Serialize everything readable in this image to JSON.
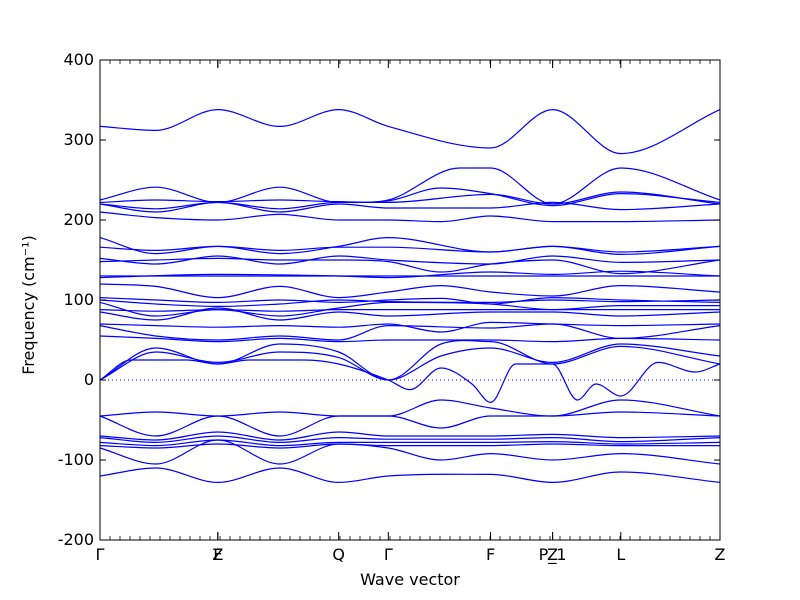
{
  "chart_data": {
    "type": "line",
    "title": "",
    "xlabel": "Wave vector",
    "ylabel": "Frequency (cm⁻¹)",
    "ylim": [
      -200,
      400
    ],
    "yticks": [
      -200,
      -100,
      0,
      100,
      200,
      300,
      400
    ],
    "kpoints": [
      {
        "label": "Γ",
        "x": 0.0
      },
      {
        "label": "F",
        "x": 0.19
      },
      {
        "label": "Z",
        "x": 0.19
      },
      {
        "label": "Q",
        "x": 0.385
      },
      {
        "label": "Γ",
        "x": 0.465
      },
      {
        "label": "F",
        "x": 0.63
      },
      {
        "label": "P_1",
        "x": 0.73
      },
      {
        "label": "Z",
        "x": 0.73
      },
      {
        "label": "L",
        "x": 0.84
      },
      {
        "label": "Z",
        "x": 1.0
      }
    ],
    "zero_line": {
      "y": 0,
      "style": "dotted"
    },
    "line_color": "#0000ff",
    "series": [
      {
        "x": [
          0,
          0.09,
          0.19,
          0.29,
          0.385,
          0.465,
          0.63,
          0.73,
          0.84,
          1.0
        ],
        "y": [
          317,
          312,
          338,
          317,
          338,
          317,
          290,
          338,
          283,
          338
        ]
      },
      {
        "x": [
          0,
          0.09,
          0.19,
          0.29,
          0.385,
          0.465,
          0.55,
          0.63,
          0.73,
          0.84,
          1.0
        ],
        "y": [
          225,
          241,
          222,
          241,
          222,
          224,
          240,
          233,
          218,
          233,
          222
        ]
      },
      {
        "x": [
          0,
          0.09,
          0.19,
          0.29,
          0.385,
          0.465,
          0.58,
          0.63,
          0.73,
          0.84,
          1.0
        ],
        "y": [
          222,
          225,
          223,
          225,
          223,
          225,
          265,
          265,
          220,
          265,
          225
        ]
      },
      {
        "x": [
          0,
          0.09,
          0.19,
          0.29,
          0.385,
          0.465,
          0.63,
          0.73,
          0.84,
          1.0
        ],
        "y": [
          220,
          214,
          222,
          214,
          222,
          222,
          232,
          220,
          235,
          220
        ]
      },
      {
        "x": [
          0,
          0.09,
          0.19,
          0.29,
          0.385,
          0.465,
          0.63,
          0.73,
          0.84,
          1.0
        ],
        "y": [
          220,
          210,
          222,
          210,
          220,
          215,
          215,
          222,
          213,
          220
        ]
      },
      {
        "x": [
          0,
          0.09,
          0.19,
          0.29,
          0.385,
          0.465,
          0.55,
          0.63,
          0.73,
          0.84,
          1.0
        ],
        "y": [
          210,
          203,
          200,
          207,
          200,
          200,
          198,
          205,
          198,
          198,
          200
        ]
      },
      {
        "x": [
          0,
          0.09,
          0.19,
          0.29,
          0.385,
          0.465,
          0.63,
          0.73,
          0.84,
          1.0
        ],
        "y": [
          178,
          158,
          167,
          158,
          167,
          178,
          160,
          167,
          157,
          167
        ]
      },
      {
        "x": [
          0,
          0.09,
          0.19,
          0.29,
          0.385,
          0.465,
          0.63,
          0.73,
          0.84,
          1.0
        ],
        "y": [
          166,
          162,
          167,
          162,
          166,
          166,
          160,
          167,
          160,
          167
        ]
      },
      {
        "x": [
          0,
          0.09,
          0.19,
          0.29,
          0.385,
          0.465,
          0.63,
          0.73,
          0.84,
          1.0
        ],
        "y": [
          152,
          145,
          155,
          145,
          155,
          150,
          145,
          155,
          147,
          150
        ]
      },
      {
        "x": [
          0,
          0.09,
          0.19,
          0.29,
          0.385,
          0.465,
          0.55,
          0.63,
          0.73,
          0.84,
          1.0
        ],
        "y": [
          148,
          150,
          152,
          150,
          150,
          148,
          135,
          145,
          150,
          133,
          150
        ]
      },
      {
        "x": [
          0,
          0.19,
          0.385,
          0.465,
          0.63,
          0.73,
          0.84,
          1.0
        ],
        "y": [
          130,
          130,
          130,
          130,
          130,
          130,
          130,
          130
        ]
      },
      {
        "x": [
          0,
          0.19,
          0.385,
          0.465,
          0.63,
          0.73,
          0.84,
          1.0
        ],
        "y": [
          128,
          132,
          130,
          128,
          135,
          132,
          136,
          130
        ]
      },
      {
        "x": [
          0,
          0.09,
          0.19,
          0.29,
          0.385,
          0.465,
          0.55,
          0.63,
          0.73,
          0.84,
          1.0
        ],
        "y": [
          120,
          117,
          103,
          117,
          103,
          110,
          118,
          110,
          105,
          118,
          110
        ]
      },
      {
        "x": [
          0,
          0.09,
          0.19,
          0.29,
          0.385,
          0.465,
          0.55,
          0.63,
          0.73,
          0.84,
          1.0
        ],
        "y": [
          103,
          100,
          97,
          100,
          97,
          100,
          102,
          95,
          103,
          100,
          97
        ]
      },
      {
        "x": [
          0,
          0.09,
          0.19,
          0.29,
          0.385,
          0.465,
          0.63,
          0.73,
          0.84,
          1.0
        ],
        "y": [
          100,
          95,
          92,
          95,
          100,
          98,
          97,
          100,
          98,
          100
        ]
      },
      {
        "x": [
          0,
          0.09,
          0.19,
          0.29,
          0.385,
          0.465,
          0.63,
          0.73,
          0.84,
          1.0
        ],
        "y": [
          97,
          80,
          88,
          80,
          90,
          97,
          95,
          88,
          93,
          93
        ]
      },
      {
        "x": [
          0,
          0.09,
          0.19,
          0.29,
          0.385,
          0.465,
          0.63,
          0.73,
          0.84,
          1.0
        ],
        "y": [
          88,
          86,
          88,
          86,
          88,
          88,
          88,
          88,
          88,
          88
        ]
      },
      {
        "x": [
          0,
          0.09,
          0.19,
          0.29,
          0.385,
          0.465,
          0.63,
          0.73,
          0.84,
          1.0
        ],
        "y": [
          85,
          75,
          90,
          75,
          85,
          80,
          85,
          85,
          80,
          85
        ]
      },
      {
        "x": [
          0,
          0.09,
          0.19,
          0.29,
          0.385,
          0.465,
          0.55,
          0.63,
          0.73,
          0.84,
          1.0
        ],
        "y": [
          70,
          68,
          66,
          68,
          66,
          70,
          60,
          72,
          70,
          68,
          70
        ]
      },
      {
        "x": [
          0,
          0.09,
          0.19,
          0.29,
          0.385,
          0.465,
          0.63,
          0.73,
          0.84,
          1.0
        ],
        "y": [
          68,
          55,
          50,
          55,
          50,
          68,
          65,
          70,
          52,
          68
        ]
      },
      {
        "x": [
          0,
          0.09,
          0.19,
          0.29,
          0.385,
          0.465,
          0.63,
          0.73,
          0.84,
          1.0
        ],
        "y": [
          55,
          52,
          48,
          52,
          48,
          50,
          50,
          48,
          52,
          50
        ]
      },
      {
        "x": [
          0,
          0.09,
          0.19,
          0.29,
          0.385,
          0.465,
          0.55,
          0.63,
          0.73,
          0.84,
          1.0
        ],
        "y": [
          0,
          40,
          20,
          45,
          35,
          0,
          45,
          48,
          20,
          42,
          20
        ]
      },
      {
        "x": [
          0,
          0.09,
          0.19,
          0.29,
          0.385,
          0.465,
          0.55,
          0.63,
          0.73,
          0.84,
          1.0
        ],
        "y": [
          0,
          35,
          22,
          35,
          28,
          0,
          30,
          40,
          22,
          45,
          30
        ]
      },
      {
        "x": [
          0,
          0.05,
          0.14,
          0.19,
          0.24,
          0.33,
          0.385,
          0.465,
          0.5,
          0.55,
          0.6,
          0.63,
          0.67,
          0.73,
          0.77,
          0.8,
          0.84,
          0.9,
          0.96,
          1.0
        ],
        "y": [
          0,
          25,
          25,
          20,
          25,
          25,
          20,
          0,
          -12,
          15,
          -5,
          -28,
          20,
          20,
          -25,
          -5,
          -20,
          22,
          10,
          20
        ]
      },
      {
        "x": [
          0,
          0.09,
          0.19,
          0.29,
          0.385,
          0.465,
          0.55,
          0.63,
          0.73,
          0.84,
          1.0
        ],
        "y": [
          -45,
          -70,
          -45,
          -70,
          -45,
          -45,
          -25,
          -35,
          -45,
          -40,
          -45
        ]
      },
      {
        "x": [
          0,
          0.09,
          0.19,
          0.29,
          0.385,
          0.465,
          0.55,
          0.63,
          0.73,
          0.84,
          1.0
        ],
        "y": [
          -45,
          -40,
          -45,
          -40,
          -45,
          -45,
          -60,
          -45,
          -45,
          -25,
          -45
        ]
      },
      {
        "x": [
          0,
          0.09,
          0.19,
          0.29,
          0.385,
          0.465,
          0.63,
          0.73,
          0.84,
          1.0
        ],
        "y": [
          -70,
          -75,
          -65,
          -75,
          -65,
          -70,
          -70,
          -68,
          -72,
          -70
        ]
      },
      {
        "x": [
          0,
          0.09,
          0.19,
          0.29,
          0.385,
          0.465,
          0.63,
          0.73,
          0.84,
          1.0
        ],
        "y": [
          -72,
          -78,
          -70,
          -78,
          -72,
          -74,
          -74,
          -72,
          -77,
          -72
        ]
      },
      {
        "x": [
          0,
          0.09,
          0.19,
          0.29,
          0.385,
          0.465,
          0.63,
          0.73,
          0.84,
          1.0
        ],
        "y": [
          -78,
          -82,
          -75,
          -82,
          -78,
          -78,
          -78,
          -77,
          -80,
          -78
        ]
      },
      {
        "x": [
          0,
          0.09,
          0.19,
          0.29,
          0.385,
          0.465,
          0.63,
          0.73,
          0.84,
          1.0
        ],
        "y": [
          -82,
          -85,
          -80,
          -85,
          -80,
          -82,
          -82,
          -80,
          -82,
          -82
        ]
      },
      {
        "x": [
          0,
          0.09,
          0.19,
          0.29,
          0.385,
          0.465,
          0.55,
          0.63,
          0.73,
          0.84,
          1.0
        ],
        "y": [
          -85,
          -105,
          -75,
          -105,
          -80,
          -85,
          -100,
          -92,
          -100,
          -92,
          -105
        ]
      },
      {
        "x": [
          0,
          0.09,
          0.19,
          0.29,
          0.385,
          0.465,
          0.63,
          0.73,
          0.84,
          1.0
        ],
        "y": [
          -120,
          -110,
          -128,
          -110,
          -128,
          -120,
          -118,
          -128,
          -115,
          -128
        ]
      }
    ]
  }
}
